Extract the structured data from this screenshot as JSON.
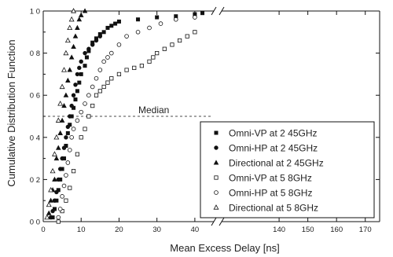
{
  "chart_data": {
    "type": "scatter",
    "xlabel": "Mean Excess Delay [ns]",
    "ylabel": "Cumulative Distribution Function",
    "x_axis": {
      "broken": true,
      "segments": [
        {
          "range": [
            0,
            45
          ],
          "ticks": [
            0,
            10,
            20,
            30,
            40
          ],
          "tick_labels": [
            "0",
            "10",
            "20",
            "30",
            "40"
          ]
        },
        {
          "range": [
            120,
            175
          ],
          "ticks": [
            140,
            150,
            160,
            170
          ],
          "tick_labels": [
            "140",
            "150",
            "160",
            "170"
          ]
        }
      ]
    },
    "y_axis": {
      "range": [
        0,
        1
      ],
      "ticks": [
        0,
        0.2,
        0.4,
        0.6,
        0.8,
        1.0
      ],
      "tick_labels": [
        "0 0",
        "0 2",
        "0 4",
        "0 6",
        "0 8",
        "1 0"
      ]
    },
    "grid": false,
    "legend_position": "bottom-right",
    "annotations": [
      {
        "text": "Median",
        "y": 0.5
      }
    ],
    "series": [
      {
        "name": "Omni-VP at 2 45GHz",
        "marker": "filled-square",
        "points": [
          [
            2.5,
            0.02
          ],
          [
            3,
            0.06
          ],
          [
            3.5,
            0.1
          ],
          [
            4,
            0.15
          ],
          [
            4.5,
            0.2
          ],
          [
            5,
            0.25
          ],
          [
            5.5,
            0.3
          ],
          [
            6,
            0.36
          ],
          [
            6.5,
            0.42
          ],
          [
            7,
            0.46
          ],
          [
            7.5,
            0.5
          ],
          [
            8,
            0.54
          ],
          [
            8.5,
            0.58
          ],
          [
            9,
            0.62
          ],
          [
            9.5,
            0.66
          ],
          [
            10,
            0.7
          ],
          [
            11,
            0.74
          ],
          [
            11.5,
            0.78
          ],
          [
            12,
            0.81
          ],
          [
            13,
            0.85
          ],
          [
            14,
            0.87
          ],
          [
            15,
            0.89
          ],
          [
            16,
            0.9
          ],
          [
            17,
            0.92
          ],
          [
            18,
            0.93
          ],
          [
            19,
            0.94
          ],
          [
            20,
            0.95
          ],
          [
            25,
            0.96
          ],
          [
            30,
            0.97
          ],
          [
            35,
            0.975
          ],
          [
            40,
            0.985
          ],
          [
            42,
            0.99
          ]
        ]
      },
      {
        "name": "Omni-HP at 2 45GHz",
        "marker": "filled-circle",
        "points": [
          [
            2,
            0.02
          ],
          [
            2.5,
            0.05
          ],
          [
            3,
            0.1
          ],
          [
            3.5,
            0.14
          ],
          [
            4,
            0.2
          ],
          [
            4.5,
            0.25
          ],
          [
            5,
            0.3
          ],
          [
            5.5,
            0.35
          ],
          [
            6,
            0.4
          ],
          [
            6.5,
            0.45
          ],
          [
            7,
            0.5
          ],
          [
            7.5,
            0.55
          ],
          [
            8,
            0.6
          ],
          [
            8.5,
            0.65
          ],
          [
            9,
            0.7
          ],
          [
            9.5,
            0.73
          ],
          [
            10,
            0.76
          ],
          [
            11,
            0.8
          ],
          [
            12,
            0.82
          ],
          [
            13,
            0.84
          ],
          [
            14,
            0.86
          ],
          [
            15,
            0.88
          ]
        ]
      },
      {
        "name": "Directional at 2 45GHz",
        "marker": "filled-triangle",
        "points": [
          [
            1.5,
            0.04
          ],
          [
            2,
            0.1
          ],
          [
            2.5,
            0.15
          ],
          [
            3,
            0.2
          ],
          [
            3.5,
            0.3
          ],
          [
            4,
            0.35
          ],
          [
            4.5,
            0.42
          ],
          [
            5,
            0.48
          ],
          [
            5.5,
            0.55
          ],
          [
            6,
            0.6
          ],
          [
            6.5,
            0.67
          ],
          [
            7,
            0.72
          ],
          [
            7.5,
            0.78
          ],
          [
            8,
            0.83
          ],
          [
            8.5,
            0.88
          ],
          [
            9,
            0.92
          ],
          [
            9.5,
            0.96
          ],
          [
            10,
            0.98
          ],
          [
            11,
            1.0
          ]
        ]
      },
      {
        "name": "Omni-VP at 5 8GHz",
        "marker": "open-square",
        "points": [
          [
            4,
            0.0
          ],
          [
            5,
            0.05
          ],
          [
            6,
            0.1
          ],
          [
            7,
            0.16
          ],
          [
            8,
            0.24
          ],
          [
            9,
            0.32
          ],
          [
            10,
            0.4
          ],
          [
            11,
            0.44
          ],
          [
            12,
            0.5
          ],
          [
            13,
            0.55
          ],
          [
            14,
            0.6
          ],
          [
            15,
            0.62
          ],
          [
            16,
            0.64
          ],
          [
            17,
            0.66
          ],
          [
            18,
            0.68
          ],
          [
            20,
            0.7
          ],
          [
            22,
            0.72
          ],
          [
            24,
            0.73
          ],
          [
            26,
            0.74
          ],
          [
            28,
            0.76
          ],
          [
            29,
            0.78
          ],
          [
            30,
            0.8
          ],
          [
            32,
            0.82
          ],
          [
            34,
            0.84
          ],
          [
            36,
            0.86
          ],
          [
            38,
            0.88
          ],
          [
            40,
            0.9
          ]
        ]
      },
      {
        "name": "Omni-HP at 5 8GHz",
        "marker": "open-circle",
        "points": [
          [
            4,
            0.02
          ],
          [
            4.5,
            0.06
          ],
          [
            5,
            0.12
          ],
          [
            5.5,
            0.17
          ],
          [
            6,
            0.22
          ],
          [
            6.5,
            0.28
          ],
          [
            7,
            0.34
          ],
          [
            7.5,
            0.4
          ],
          [
            8,
            0.44
          ],
          [
            9,
            0.48
          ],
          [
            10,
            0.52
          ],
          [
            11,
            0.56
          ],
          [
            12,
            0.6
          ],
          [
            13,
            0.64
          ],
          [
            14,
            0.68
          ],
          [
            15,
            0.72
          ],
          [
            16,
            0.76
          ],
          [
            17,
            0.78
          ],
          [
            18,
            0.8
          ],
          [
            20,
            0.84
          ],
          [
            22,
            0.88
          ],
          [
            25,
            0.9
          ],
          [
            28,
            0.92
          ],
          [
            31,
            0.94
          ],
          [
            35,
            0.96
          ],
          [
            40,
            0.97
          ]
        ]
      },
      {
        "name": "Directional at 5 8GHz",
        "marker": "open-triangle",
        "points": [
          [
            1,
            0.02
          ],
          [
            1.5,
            0.08
          ],
          [
            2,
            0.15
          ],
          [
            2.5,
            0.24
          ],
          [
            3,
            0.32
          ],
          [
            3.5,
            0.4
          ],
          [
            4,
            0.48
          ],
          [
            4.5,
            0.56
          ],
          [
            5,
            0.64
          ],
          [
            5.5,
            0.72
          ],
          [
            6,
            0.8
          ],
          [
            6.5,
            0.86
          ],
          [
            7,
            0.92
          ],
          [
            7.5,
            0.96
          ],
          [
            8,
            1.0
          ]
        ]
      }
    ]
  }
}
